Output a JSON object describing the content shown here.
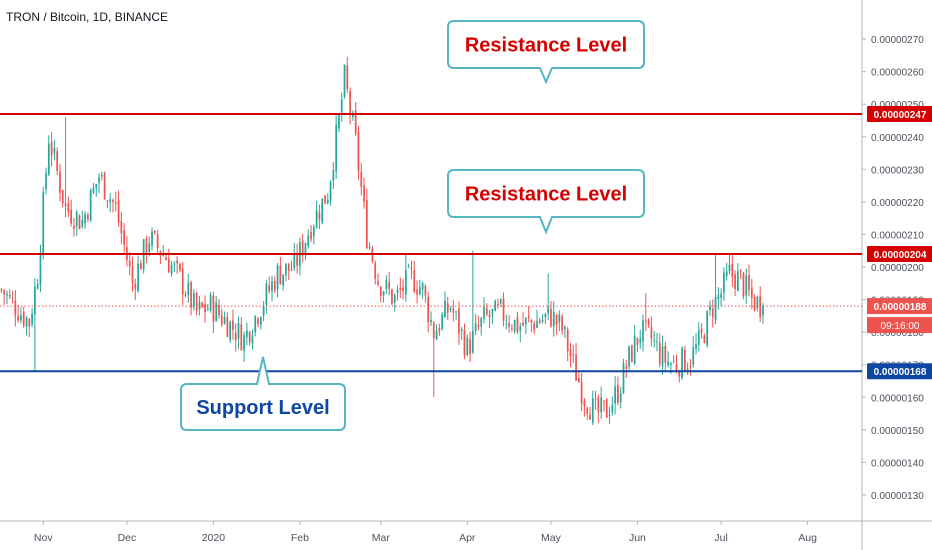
{
  "header": {
    "title": "TRON / Bitcoin, 1D, BINANCE"
  },
  "chart_data": {
    "type": "candlestick",
    "y_ticks": [
      "0.00000270",
      "0.00000260",
      "0.00000250",
      "0.00000240",
      "0.00000230",
      "0.00000220",
      "0.00000210",
      "0.00000200",
      "0.00000190",
      "0.00000180",
      "0.00000170",
      "0.00000160",
      "0.00000150",
      "0.00000140",
      "0.00000130"
    ],
    "y_tick_values": [
      270,
      260,
      250,
      240,
      230,
      220,
      210,
      200,
      190,
      180,
      170,
      160,
      150,
      140,
      130
    ],
    "x_ticks": [
      "Nov",
      "Dec",
      "2020",
      "Feb",
      "Mar",
      "Apr",
      "May",
      "Jun",
      "Jul",
      "Aug"
    ],
    "x_tick_days": [
      0,
      30,
      61,
      92,
      121,
      152,
      182,
      213,
      243,
      274
    ],
    "ylim": [
      122,
      282
    ],
    "xlim": [
      -15.5,
      293.5
    ],
    "levels": [
      {
        "value": 247,
        "label": "0.00000247",
        "color": "#d50000",
        "kind": "resistance"
      },
      {
        "value": 204,
        "label": "0.00000204",
        "color": "#d50000",
        "kind": "resistance"
      },
      {
        "value": 168,
        "label": "0.00000168",
        "color": "#0d47a1",
        "kind": "support"
      }
    ],
    "last_price": {
      "value": 188,
      "label": "0.00000188",
      "countdown": "09:16:00"
    },
    "callouts": [
      {
        "text": "Resistance Level",
        "color": "#d50000"
      },
      {
        "text": "Resistance Level",
        "color": "#d50000"
      },
      {
        "text": "Support Level",
        "color": "#0d47a1"
      }
    ],
    "anchors": [
      [
        -15,
        193
      ],
      [
        -8,
        186
      ],
      [
        -5,
        183
      ],
      [
        -2,
        198
      ],
      [
        2,
        240
      ],
      [
        8,
        218
      ],
      [
        14,
        214
      ],
      [
        20,
        228
      ],
      [
        26,
        218
      ],
      [
        32,
        195
      ],
      [
        38,
        209
      ],
      [
        44,
        203
      ],
      [
        50,
        195
      ],
      [
        55,
        186
      ],
      [
        60,
        188
      ],
      [
        66,
        183
      ],
      [
        72,
        178
      ],
      [
        78,
        188
      ],
      [
        84,
        198
      ],
      [
        90,
        200
      ],
      [
        96,
        213
      ],
      [
        102,
        223
      ],
      [
        106,
        245
      ],
      [
        108,
        258
      ],
      [
        112,
        238
      ],
      [
        116,
        210
      ],
      [
        120,
        196
      ],
      [
        126,
        190
      ],
      [
        132,
        197
      ],
      [
        136,
        193
      ],
      [
        140,
        180
      ],
      [
        146,
        188
      ],
      [
        152,
        175
      ],
      [
        158,
        184
      ],
      [
        164,
        186
      ],
      [
        170,
        182
      ],
      [
        176,
        183
      ],
      [
        182,
        185
      ],
      [
        186,
        181
      ],
      [
        190,
        170
      ],
      [
        194,
        160
      ],
      [
        198,
        155
      ],
      [
        202,
        156
      ],
      [
        206,
        162
      ],
      [
        210,
        172
      ],
      [
        214,
        180
      ],
      [
        218,
        178
      ],
      [
        222,
        172
      ],
      [
        226,
        170
      ],
      [
        232,
        172
      ],
      [
        236,
        178
      ],
      [
        240,
        188
      ],
      [
        243,
        192
      ],
      [
        246,
        198
      ],
      [
        250,
        196
      ],
      [
        254,
        190
      ],
      [
        258,
        188
      ]
    ],
    "spikes": [
      {
        "day": -3,
        "low": 168
      },
      {
        "day": 8,
        "high": 246
      },
      {
        "day": 108,
        "high": 262
      },
      {
        "day": 130,
        "high": 204
      },
      {
        "day": 140,
        "low": 160
      },
      {
        "day": 154,
        "high": 205
      },
      {
        "day": 181,
        "high": 198
      },
      {
        "day": 199,
        "low": 152
      },
      {
        "day": 216,
        "high": 192
      },
      {
        "day": 241,
        "high": 204
      }
    ],
    "colors": {
      "up": "#26a69a",
      "down": "#ef5350"
    }
  }
}
